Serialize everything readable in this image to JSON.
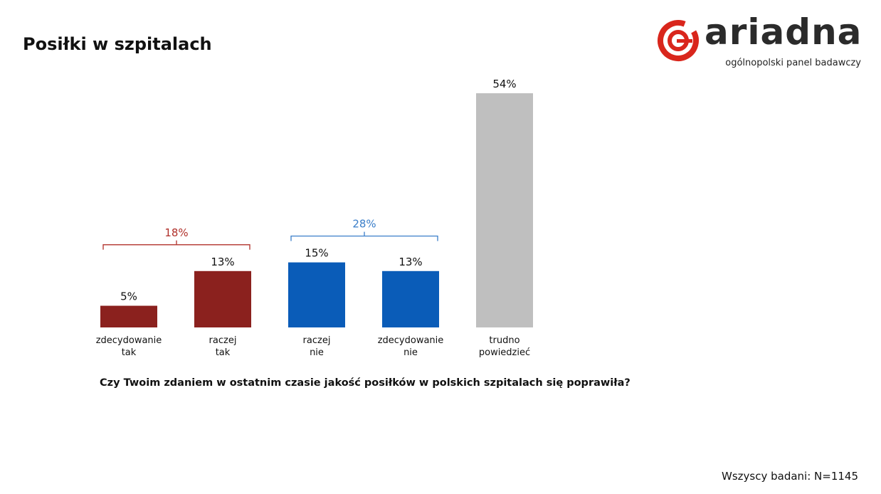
{
  "title": "Posiłki w szpitalach",
  "logo": {
    "word": "ariadna",
    "tagline": "ogólnopolski panel badawczy"
  },
  "question": "Czy Twoim zdaniem w ostatnim czasie jakość posiłków w polskich szpitalach się poprawiła?",
  "base_note": "Wszyscy badani: N=1145",
  "colors": {
    "red": "#8b211e",
    "blue": "#0a5cb8",
    "gray": "#bfbfbf",
    "brand_red": "#d9261c"
  },
  "chart_data": {
    "type": "bar",
    "categories": [
      [
        "zdecydowanie",
        "tak"
      ],
      [
        "raczej",
        "tak"
      ],
      [
        "raczej",
        "nie"
      ],
      [
        "zdecydowanie",
        "nie"
      ],
      [
        "trudno",
        "powiedzieć"
      ]
    ],
    "values": [
      5,
      13,
      15,
      13,
      54
    ],
    "value_labels": [
      "5%",
      "13%",
      "15%",
      "13%",
      "54%"
    ],
    "bar_colors": [
      "#8b211e",
      "#8b211e",
      "#0a5cb8",
      "#0a5cb8",
      "#bfbfbf"
    ],
    "groups": [
      {
        "label": "18%",
        "from": 0,
        "to": 1,
        "color": "#b0302a"
      },
      {
        "label": "28%",
        "from": 2,
        "to": 3,
        "color": "#3a7ec9"
      }
    ],
    "ylim": [
      0,
      54
    ],
    "grid": false,
    "legend": "none",
    "xlabel": "",
    "ylabel": ""
  }
}
